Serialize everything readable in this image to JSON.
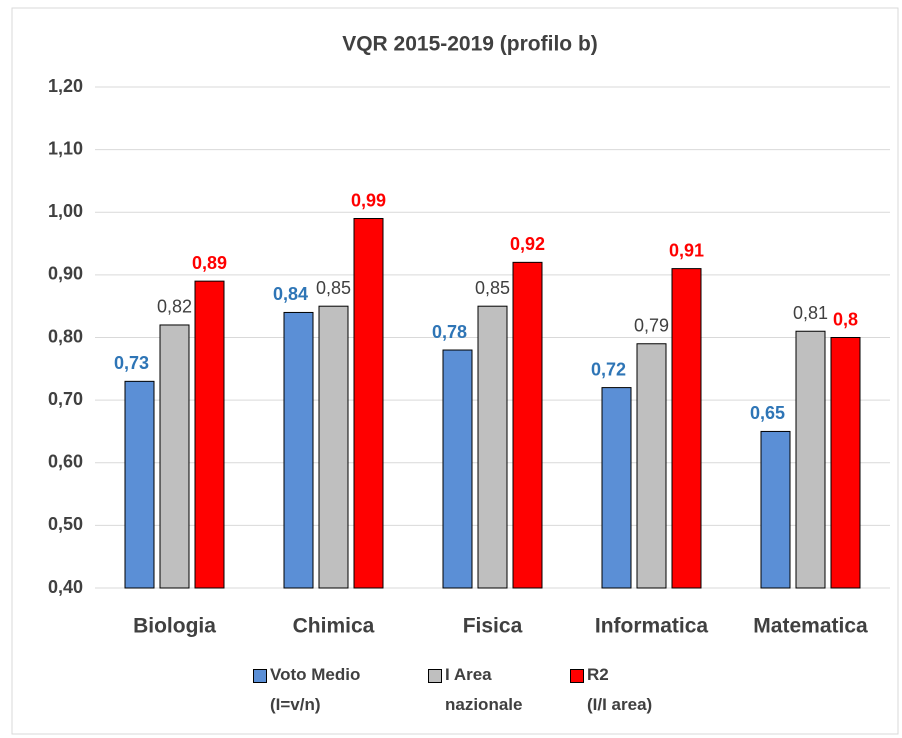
{
  "chart_data": {
    "type": "bar",
    "title": "VQR 2015-2019 (profilo b)",
    "categories": [
      "Biologia",
      "Chimica",
      "Fisica",
      "Informatica",
      "Matematica"
    ],
    "series": [
      {
        "name": "Voto Medio\n(I=v/n)",
        "color": "#5b8fd6",
        "label_color": "#2e75b6",
        "values": [
          0.73,
          0.84,
          0.78,
          0.72,
          0.65
        ],
        "value_labels": [
          "0,73",
          "0,84",
          "0,78",
          "0,72",
          "0,65"
        ]
      },
      {
        "name": "I Area\nnazionale",
        "color": "#bfbfbf",
        "label_color": "#404040",
        "values": [
          0.82,
          0.85,
          0.85,
          0.79,
          0.81
        ],
        "value_labels": [
          "0,82",
          "0,85",
          "0,85",
          "0,79",
          "0,81"
        ]
      },
      {
        "name": "R2\n(I/I area)",
        "color": "#ff0000",
        "label_color": "#ff0000",
        "values": [
          0.89,
          0.99,
          0.92,
          0.91,
          0.8
        ],
        "value_labels": [
          "0,89",
          "0,99",
          "0,92",
          "0,91",
          "0,8"
        ]
      }
    ],
    "ylim": [
      0.4,
      1.2
    ],
    "yticks": [
      {
        "value": 0.4,
        "label": "0,40"
      },
      {
        "value": 0.5,
        "label": "0,50"
      },
      {
        "value": 0.6,
        "label": "0,60"
      },
      {
        "value": 0.7,
        "label": "0,70"
      },
      {
        "value": 0.8,
        "label": "0,80"
      },
      {
        "value": 0.9,
        "label": "0,90"
      },
      {
        "value": 1.0,
        "label": "1,00"
      },
      {
        "value": 1.1,
        "label": "1,10"
      },
      {
        "value": 1.2,
        "label": "1,20"
      }
    ],
    "grid": true,
    "legend": "bottom"
  }
}
